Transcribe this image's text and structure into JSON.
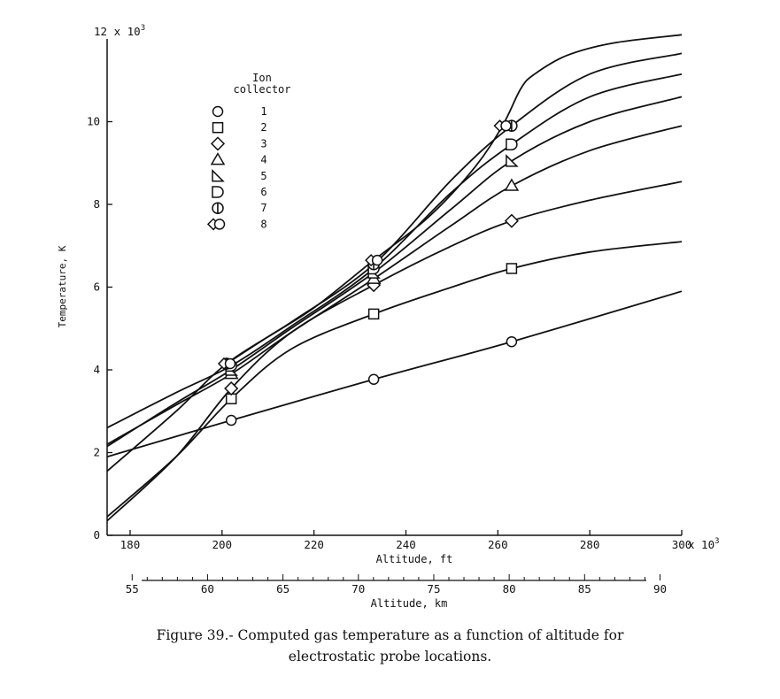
{
  "chart_data": {
    "type": "line",
    "xlabel": "Altitude, ft",
    "x_multiplier": "x 10",
    "x_multiplier_exp": "3",
    "xlim": [
      175,
      300
    ],
    "x_ticks": [
      "180",
      "200",
      "220",
      "240",
      "260",
      "280",
      "300"
    ],
    "secondary_xlabel": "Altitude, km",
    "secondary_xlim": [
      53.34,
      91.44
    ],
    "secondary_x_ticks": [
      "55",
      "60",
      "65",
      "70",
      "75",
      "80",
      "85",
      "90"
    ],
    "ylabel": "Temperature, K",
    "y_multiplier": "12 x 10",
    "y_multiplier_exp": "3",
    "ylim": [
      0,
      12
    ],
    "y_ticks": [
      "0",
      "2",
      "4",
      "6",
      "8",
      "10"
    ],
    "grid": false,
    "legend": {
      "title_line1": "Ion",
      "title_line2": "collector",
      "placement": "upper-left"
    },
    "series": [
      {
        "name": "1",
        "marker": "circle",
        "points": [
          [
            202,
            2.78
          ],
          [
            233,
            3.77
          ],
          [
            263,
            4.68
          ]
        ],
        "curve": [
          [
            175,
            1.9
          ],
          [
            202,
            2.78
          ],
          [
            233,
            3.77
          ],
          [
            263,
            4.68
          ],
          [
            300,
            5.9
          ]
        ]
      },
      {
        "name": "2",
        "marker": "square",
        "points": [
          [
            202,
            3.3
          ],
          [
            233,
            5.35
          ],
          [
            263,
            6.45
          ]
        ],
        "curve": [
          [
            175,
            0.45
          ],
          [
            190,
            1.9
          ],
          [
            202,
            3.3
          ],
          [
            215,
            4.5
          ],
          [
            233,
            5.35
          ],
          [
            250,
            6.0
          ],
          [
            263,
            6.45
          ],
          [
            280,
            6.85
          ],
          [
            300,
            7.1
          ]
        ]
      },
      {
        "name": "3",
        "marker": "diamond",
        "points": [
          [
            202,
            3.55
          ],
          [
            233,
            6.05
          ],
          [
            263,
            7.6
          ]
        ],
        "curve": [
          [
            175,
            0.35
          ],
          [
            190,
            1.9
          ],
          [
            202,
            3.55
          ],
          [
            215,
            4.9
          ],
          [
            233,
            6.05
          ],
          [
            250,
            7.0
          ],
          [
            263,
            7.6
          ],
          [
            280,
            8.1
          ],
          [
            300,
            8.55
          ]
        ]
      },
      {
        "name": "4",
        "marker": "triangle",
        "points": [
          [
            202,
            3.9
          ],
          [
            233,
            6.2
          ],
          [
            263,
            8.45
          ]
        ],
        "curve": [
          [
            175,
            2.2
          ],
          [
            190,
            3.15
          ],
          [
            202,
            3.9
          ],
          [
            215,
            4.9
          ],
          [
            233,
            6.2
          ],
          [
            250,
            7.5
          ],
          [
            263,
            8.45
          ],
          [
            280,
            9.3
          ],
          [
            300,
            9.9
          ]
        ]
      },
      {
        "name": "5",
        "marker": "triangle-right",
        "points": [
          [
            202,
            4.0
          ],
          [
            233,
            6.35
          ],
          [
            263,
            9.05
          ]
        ],
        "curve": [
          [
            175,
            2.15
          ],
          [
            190,
            3.2
          ],
          [
            202,
            4.0
          ],
          [
            215,
            5.0
          ],
          [
            233,
            6.35
          ],
          [
            250,
            7.9
          ],
          [
            263,
            9.05
          ],
          [
            280,
            10.0
          ],
          [
            300,
            10.6
          ]
        ]
      },
      {
        "name": "6",
        "marker": "d-shape",
        "points": [
          [
            202,
            4.1
          ],
          [
            233,
            6.45
          ],
          [
            263,
            9.45
          ]
        ],
        "curve": [
          [
            175,
            2.6
          ],
          [
            190,
            3.45
          ],
          [
            202,
            4.1
          ],
          [
            215,
            5.05
          ],
          [
            233,
            6.45
          ],
          [
            250,
            8.3
          ],
          [
            263,
            9.45
          ],
          [
            280,
            10.6
          ],
          [
            300,
            11.15
          ]
        ]
      },
      {
        "name": "7",
        "marker": "double-d",
        "points": [
          [
            201,
            4.15
          ],
          [
            233,
            6.55
          ],
          [
            263,
            9.9
          ]
        ],
        "curve": [
          [
            175,
            1.55
          ],
          [
            190,
            3.0
          ],
          [
            201,
            4.15
          ],
          [
            215,
            5.15
          ],
          [
            233,
            6.55
          ],
          [
            250,
            8.6
          ],
          [
            263,
            9.9
          ],
          [
            280,
            11.15
          ],
          [
            300,
            11.65
          ]
        ]
      },
      {
        "name": "8",
        "marker": "diamond-circle",
        "points": [
          [
            201,
            4.15
          ],
          [
            233,
            6.65
          ],
          [
            261,
            9.9
          ]
        ],
        "curve": [
          [
            201,
            4.15
          ],
          [
            210,
            4.8
          ],
          [
            220,
            5.5
          ],
          [
            233,
            6.65
          ],
          [
            245,
            7.7
          ],
          [
            255,
            8.9
          ],
          [
            261,
            9.9
          ],
          [
            265,
            10.8
          ],
          [
            268,
            11.15
          ],
          [
            275,
            11.6
          ],
          [
            285,
            11.9
          ],
          [
            300,
            12.1
          ]
        ]
      }
    ]
  },
  "caption": {
    "line1": "Figure 39.- Computed gas temperature as a function of altitude for",
    "line2": "electrostatic probe locations."
  }
}
